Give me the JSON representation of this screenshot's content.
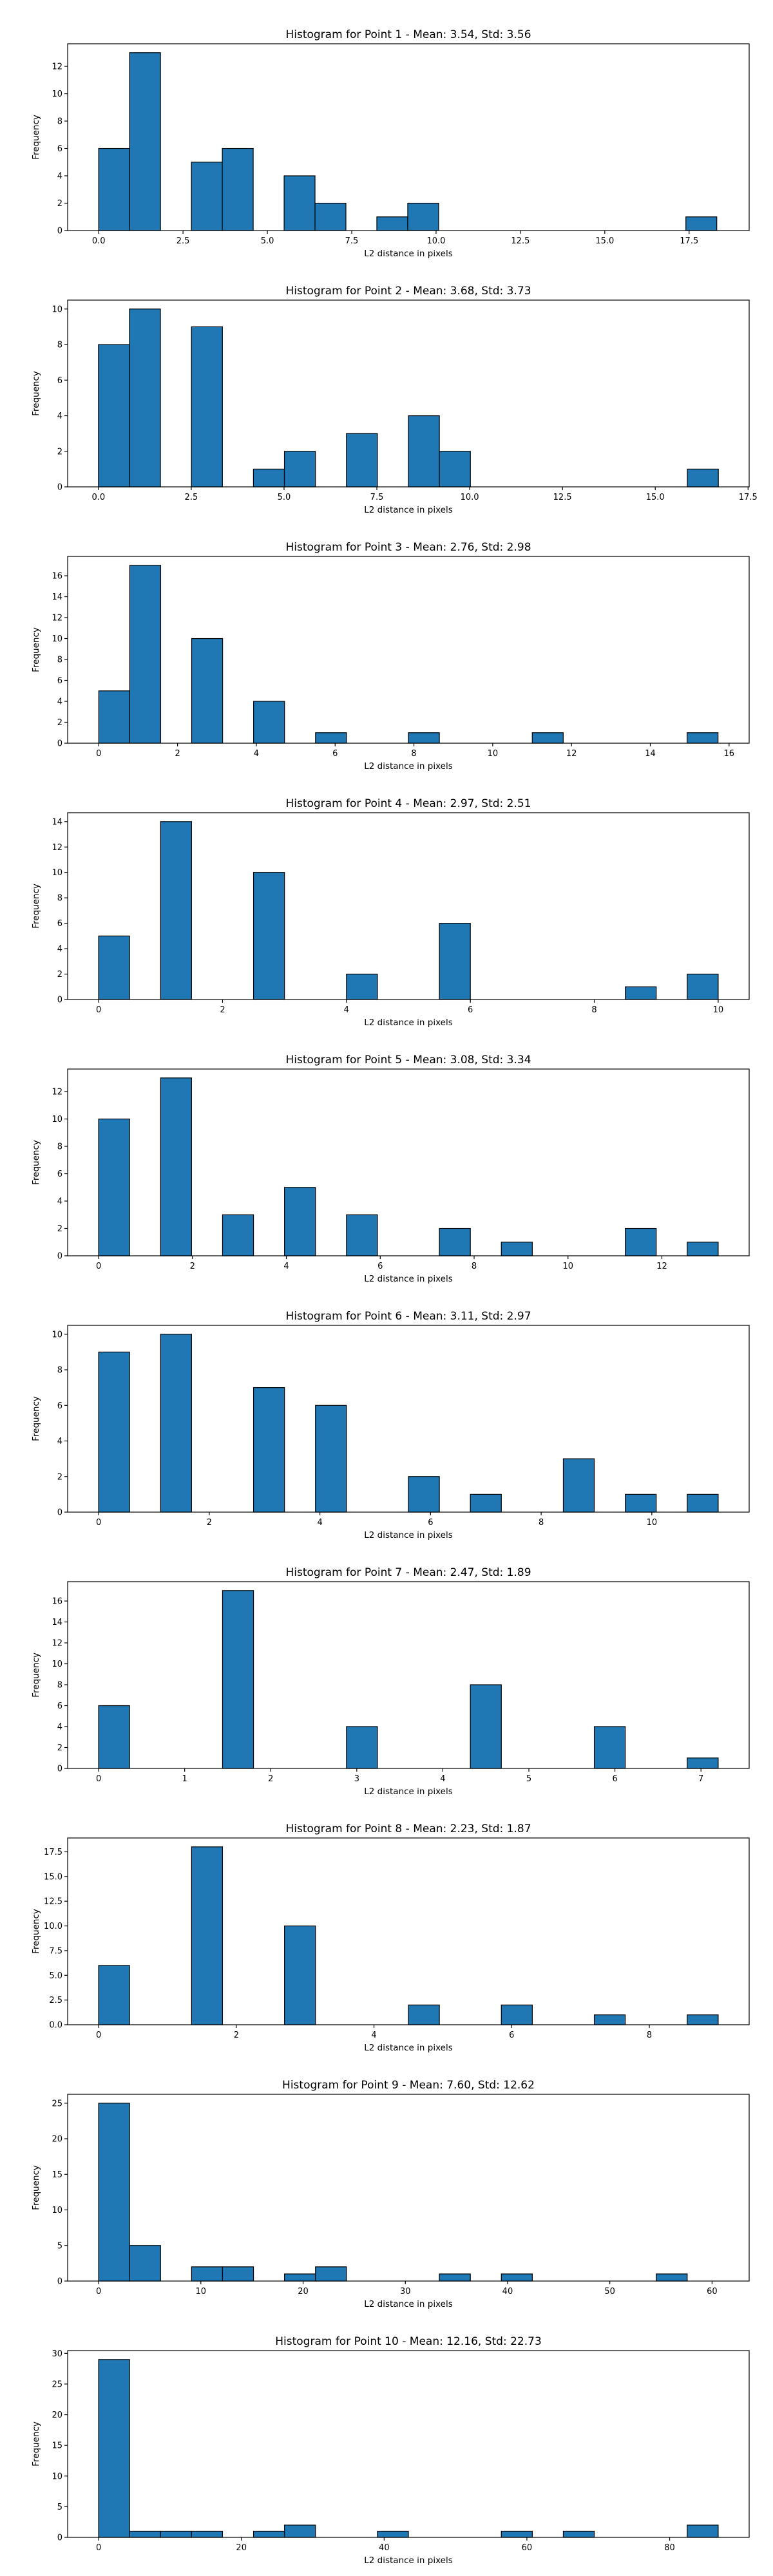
{
  "chart_data": [
    {
      "type": "bar",
      "title": "Histogram for Point 1 - Mean: 3.54, Std: 3.56",
      "xlabel": "L2 distance in pixels",
      "ylabel": "Frequency",
      "xlim": [
        -0.92,
        19.28
      ],
      "ylim": [
        0,
        13.65
      ],
      "xticks": [
        "0.0",
        "2.5",
        "5.0",
        "7.5",
        "10.0",
        "12.5",
        "15.0",
        "17.5"
      ],
      "xtick_values": [
        0,
        2.5,
        5,
        7.5,
        10,
        12.5,
        15,
        17.5
      ],
      "yticks": [
        "0",
        "2",
        "4",
        "6",
        "8",
        "10",
        "12"
      ],
      "ytick_values": [
        0,
        2,
        4,
        6,
        8,
        10,
        12
      ],
      "bin_edges": [
        0,
        0.916,
        1.832,
        2.748,
        3.664,
        4.58,
        5.496,
        6.412,
        7.328,
        8.244,
        9.16,
        10.076,
        10.992,
        11.908,
        12.824,
        13.74,
        14.656,
        15.572,
        16.488,
        17.404,
        18.32
      ],
      "values": [
        6,
        13,
        0,
        5,
        6,
        0,
        4,
        2,
        0,
        1,
        2,
        0,
        0,
        0,
        0,
        0,
        0,
        0,
        0,
        1
      ],
      "grid": false,
      "color": "#1f77b4"
    },
    {
      "type": "bar",
      "title": "Histogram for Point 2 - Mean: 3.68, Std: 3.73",
      "xlabel": "L2 distance in pixels",
      "ylabel": "Frequency",
      "xlim": [
        -0.83,
        17.53
      ],
      "ylim": [
        0,
        10.5
      ],
      "xticks": [
        "0.0",
        "2.5",
        "5.0",
        "7.5",
        "10.0",
        "12.5",
        "15.0",
        "17.5"
      ],
      "xtick_values": [
        0,
        2.5,
        5,
        7.5,
        10,
        12.5,
        15,
        17.5
      ],
      "yticks": [
        "0",
        "2",
        "4",
        "6",
        "8",
        "10"
      ],
      "ytick_values": [
        0,
        2,
        4,
        6,
        8,
        10
      ],
      "bin_edges": [
        0,
        0.835,
        1.67,
        2.505,
        3.34,
        4.175,
        5.01,
        5.845,
        6.68,
        7.515,
        8.35,
        9.185,
        10.02,
        10.855,
        11.69,
        12.525,
        13.36,
        14.195,
        15.03,
        15.865,
        16.7
      ],
      "values": [
        8,
        10,
        0,
        9,
        0,
        1,
        2,
        0,
        3,
        0,
        4,
        2,
        0,
        0,
        0,
        0,
        0,
        0,
        0,
        1
      ],
      "grid": false,
      "color": "#1f77b4"
    },
    {
      "type": "bar",
      "title": "Histogram for Point 3 - Mean: 2.76, Std: 2.98",
      "xlabel": "L2 distance in pixels",
      "ylabel": "Frequency",
      "xlim": [
        -0.79,
        16.51
      ],
      "ylim": [
        0,
        17.85
      ],
      "xticks": [
        "0",
        "2",
        "4",
        "6",
        "8",
        "10",
        "12",
        "14",
        "16"
      ],
      "xtick_values": [
        0,
        2,
        4,
        6,
        8,
        10,
        12,
        14,
        16
      ],
      "yticks": [
        "0",
        "2",
        "4",
        "6",
        "8",
        "10",
        "12",
        "14",
        "16"
      ],
      "ytick_values": [
        0,
        2,
        4,
        6,
        8,
        10,
        12,
        14,
        16
      ],
      "bin_edges": [
        0,
        0.786,
        1.572,
        2.358,
        3.144,
        3.93,
        4.716,
        5.502,
        6.288,
        7.074,
        7.86,
        8.646,
        9.432,
        10.218,
        11.004,
        11.79,
        12.576,
        13.362,
        14.148,
        14.934,
        15.72
      ],
      "values": [
        5,
        17,
        0,
        10,
        0,
        4,
        0,
        1,
        0,
        0,
        1,
        0,
        0,
        0,
        1,
        0,
        0,
        0,
        0,
        1
      ],
      "grid": false,
      "color": "#1f77b4"
    },
    {
      "type": "bar",
      "title": "Histogram for Point 4 - Mean: 2.97, Std: 2.51",
      "xlabel": "L2 distance in pixels",
      "ylabel": "Frequency",
      "xlim": [
        -0.5,
        10.5
      ],
      "ylim": [
        0,
        14.7
      ],
      "xticks": [
        "0",
        "2",
        "4",
        "6",
        "8",
        "10"
      ],
      "xtick_values": [
        0,
        2,
        4,
        6,
        8,
        10
      ],
      "yticks": [
        "0",
        "2",
        "4",
        "6",
        "8",
        "10",
        "12",
        "14"
      ],
      "ytick_values": [
        0,
        2,
        4,
        6,
        8,
        10,
        12,
        14
      ],
      "bin_edges": [
        0,
        0.5,
        1,
        1.5,
        2,
        2.5,
        3,
        3.5,
        4,
        4.5,
        5,
        5.5,
        6,
        6.5,
        7,
        7.5,
        8,
        8.5,
        9,
        9.5,
        10
      ],
      "values": [
        5,
        0,
        14,
        0,
        0,
        10,
        0,
        0,
        2,
        0,
        0,
        6,
        0,
        0,
        0,
        0,
        0,
        1,
        0,
        2
      ],
      "grid": false,
      "color": "#1f77b4"
    },
    {
      "type": "bar",
      "title": "Histogram for Point 5 - Mean: 3.08, Std: 3.34",
      "xlabel": "L2 distance in pixels",
      "ylabel": "Frequency",
      "xlim": [
        -0.66,
        13.86
      ],
      "ylim": [
        0,
        13.65
      ],
      "xticks": [
        "0",
        "2",
        "4",
        "6",
        "8",
        "10",
        "12"
      ],
      "xtick_values": [
        0,
        2,
        4,
        6,
        8,
        10,
        12
      ],
      "yticks": [
        "0",
        "2",
        "4",
        "6",
        "8",
        "10",
        "12"
      ],
      "ytick_values": [
        0,
        2,
        4,
        6,
        8,
        10,
        12
      ],
      "bin_edges": [
        0,
        0.66,
        1.32,
        1.98,
        2.64,
        3.3,
        3.96,
        4.62,
        5.28,
        5.94,
        6.6,
        7.26,
        7.92,
        8.58,
        9.24,
        9.9,
        10.56,
        11.22,
        11.88,
        12.54,
        13.2
      ],
      "values": [
        10,
        0,
        13,
        0,
        3,
        0,
        5,
        0,
        3,
        0,
        0,
        2,
        0,
        1,
        0,
        0,
        0,
        2,
        0,
        1
      ],
      "grid": false,
      "color": "#1f77b4"
    },
    {
      "type": "bar",
      "title": "Histogram for Point 6 - Mean: 3.11, Std: 2.97",
      "xlabel": "L2 distance in pixels",
      "ylabel": "Frequency",
      "xlim": [
        -0.56,
        11.76
      ],
      "ylim": [
        0,
        10.5
      ],
      "xticks": [
        "0",
        "2",
        "4",
        "6",
        "8",
        "10"
      ],
      "xtick_values": [
        0,
        2,
        4,
        6,
        8,
        10
      ],
      "yticks": [
        "0",
        "2",
        "4",
        "6",
        "8",
        "10"
      ],
      "ytick_values": [
        0,
        2,
        4,
        6,
        8,
        10
      ],
      "bin_edges": [
        0,
        0.56,
        1.12,
        1.68,
        2.24,
        2.8,
        3.36,
        3.92,
        4.48,
        5.04,
        5.6,
        6.16,
        6.72,
        7.28,
        7.84,
        8.4,
        8.96,
        9.52,
        10.08,
        10.64,
        11.2
      ],
      "values": [
        9,
        0,
        10,
        0,
        0,
        7,
        0,
        6,
        0,
        0,
        2,
        0,
        1,
        0,
        0,
        3,
        0,
        1,
        0,
        1
      ],
      "grid": false,
      "color": "#1f77b4"
    },
    {
      "type": "bar",
      "title": "Histogram for Point 7 - Mean: 2.47, Std: 1.89",
      "xlabel": "L2 distance in pixels",
      "ylabel": "Frequency",
      "xlim": [
        -0.36,
        7.56
      ],
      "ylim": [
        0,
        17.85
      ],
      "xticks": [
        "0",
        "1",
        "2",
        "3",
        "4",
        "5",
        "6",
        "7"
      ],
      "xtick_values": [
        0,
        1,
        2,
        3,
        4,
        5,
        6,
        7
      ],
      "yticks": [
        "0",
        "2",
        "4",
        "6",
        "8",
        "10",
        "12",
        "14",
        "16"
      ],
      "ytick_values": [
        0,
        2,
        4,
        6,
        8,
        10,
        12,
        14,
        16
      ],
      "bin_edges": [
        0,
        0.36,
        0.72,
        1.08,
        1.44,
        1.8,
        2.16,
        2.52,
        2.88,
        3.24,
        3.6,
        3.96,
        4.32,
        4.68,
        5.04,
        5.4,
        5.76,
        6.12,
        6.48,
        6.84,
        7.2
      ],
      "values": [
        6,
        0,
        0,
        0,
        17,
        0,
        0,
        0,
        4,
        0,
        0,
        0,
        8,
        0,
        0,
        0,
        4,
        0,
        0,
        1
      ],
      "grid": false,
      "color": "#1f77b4"
    },
    {
      "type": "bar",
      "title": "Histogram for Point 8 - Mean: 2.23, Std: 1.87",
      "xlabel": "L2 distance in pixels",
      "ylabel": "Frequency",
      "xlim": [
        -0.45,
        9.45
      ],
      "ylim": [
        0,
        18.9
      ],
      "xticks": [
        "0",
        "2",
        "4",
        "6",
        "8"
      ],
      "xtick_values": [
        0,
        2,
        4,
        6,
        8
      ],
      "yticks": [
        "0.0",
        "2.5",
        "5.0",
        "7.5",
        "10.0",
        "12.5",
        "15.0",
        "17.5"
      ],
      "ytick_values": [
        0,
        2.5,
        5,
        7.5,
        10,
        12.5,
        15,
        17.5
      ],
      "bin_edges": [
        0,
        0.45,
        0.9,
        1.35,
        1.8,
        2.25,
        2.7,
        3.15,
        3.6,
        4.05,
        4.5,
        4.95,
        5.4,
        5.85,
        6.3,
        6.75,
        7.2,
        7.65,
        8.1,
        8.55,
        9.0
      ],
      "values": [
        6,
        0,
        0,
        18,
        0,
        0,
        10,
        0,
        0,
        0,
        2,
        0,
        0,
        2,
        0,
        0,
        1,
        0,
        0,
        1
      ],
      "grid": false,
      "color": "#1f77b4"
    },
    {
      "type": "bar",
      "title": "Histogram for Point 9 - Mean: 7.60, Std: 12.62",
      "xlabel": "L2 distance in pixels",
      "ylabel": "Frequency",
      "xlim": [
        -3.03,
        63.63
      ],
      "ylim": [
        0,
        26.25
      ],
      "xticks": [
        "0",
        "10",
        "20",
        "30",
        "40",
        "50",
        "60"
      ],
      "xtick_values": [
        0,
        10,
        20,
        30,
        40,
        50,
        60
      ],
      "yticks": [
        "0",
        "5",
        "10",
        "15",
        "20",
        "25"
      ],
      "ytick_values": [
        0,
        5,
        10,
        15,
        20,
        25
      ],
      "bin_edges": [
        0,
        3.03,
        6.06,
        9.09,
        12.12,
        15.15,
        18.18,
        21.21,
        24.24,
        27.27,
        30.3,
        33.33,
        36.36,
        39.39,
        42.42,
        45.45,
        48.48,
        51.51,
        54.54,
        57.57,
        60.6
      ],
      "values": [
        25,
        5,
        0,
        2,
        2,
        0,
        1,
        2,
        0,
        0,
        0,
        1,
        0,
        1,
        0,
        0,
        0,
        0,
        1,
        0
      ],
      "grid": false,
      "color": "#1f77b4"
    },
    {
      "type": "bar",
      "title": "Histogram for Point 10 - Mean: 12.16, Std: 22.73",
      "xlabel": "L2 distance in pixels",
      "ylabel": "Frequency",
      "xlim": [
        -4.34,
        91.14
      ],
      "ylim": [
        0,
        30.45
      ],
      "xticks": [
        "0",
        "20",
        "40",
        "60",
        "80"
      ],
      "xtick_values": [
        0,
        20,
        40,
        60,
        80
      ],
      "yticks": [
        "0",
        "5",
        "10",
        "15",
        "20",
        "25",
        "30"
      ],
      "ytick_values": [
        0,
        5,
        10,
        15,
        20,
        25,
        30
      ],
      "bin_edges": [
        0,
        4.34,
        8.68,
        13.02,
        17.36,
        21.7,
        26.04,
        30.38,
        34.72,
        39.06,
        43.4,
        47.74,
        52.08,
        56.42,
        60.76,
        65.1,
        69.44,
        73.78,
        78.12,
        82.46,
        86.8
      ],
      "values": [
        29,
        1,
        1,
        1,
        0,
        1,
        2,
        0,
        0,
        1,
        0,
        0,
        0,
        1,
        0,
        1,
        0,
        0,
        0,
        2
      ],
      "grid": false,
      "color": "#1f77b4"
    }
  ]
}
